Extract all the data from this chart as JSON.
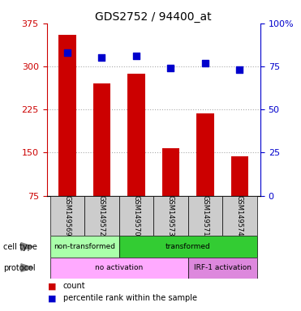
{
  "title": "GDS2752 / 94400_at",
  "samples": [
    "GSM149569",
    "GSM149572",
    "GSM149570",
    "GSM149573",
    "GSM149571",
    "GSM149574"
  ],
  "counts": [
    355,
    271,
    287,
    158,
    218,
    143
  ],
  "percentile_ranks": [
    83,
    80,
    81,
    74,
    77,
    73
  ],
  "ylim_left": [
    75,
    375
  ],
  "ylim_right": [
    0,
    100
  ],
  "yticks_left": [
    75,
    150,
    225,
    300,
    375
  ],
  "yticks_right": [
    0,
    25,
    50,
    75,
    100
  ],
  "bar_color": "#cc0000",
  "dot_color": "#0000cc",
  "grid_color": "#aaaaaa",
  "cell_type_row": [
    {
      "label": "non-transformed",
      "start": 0,
      "end": 2,
      "color": "#aaffaa"
    },
    {
      "label": "transformed",
      "start": 2,
      "end": 6,
      "color": "#33cc33"
    }
  ],
  "protocol_row": [
    {
      "label": "no activation",
      "start": 0,
      "end": 4,
      "color": "#ffaaff"
    },
    {
      "label": "IRF-1 activation",
      "start": 4,
      "end": 6,
      "color": "#dd88dd"
    }
  ],
  "left_axis_color": "#cc0000",
  "right_axis_color": "#0000cc",
  "xticklabel_bg": "#cccccc",
  "bar_width": 0.5
}
